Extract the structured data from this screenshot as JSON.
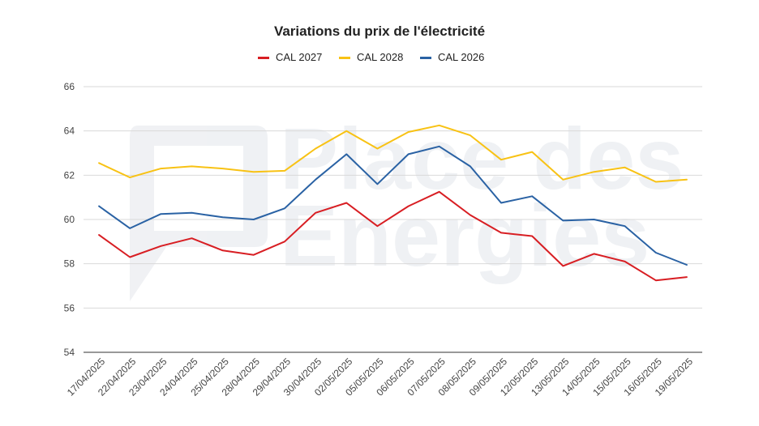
{
  "chart_data": {
    "type": "line",
    "title": "Variations du prix de l'électricité",
    "xlabel": "",
    "ylabel": "",
    "categories": [
      "17/04/2025",
      "22/04/2025",
      "23/04/2025",
      "24/04/2025",
      "25/04/2025",
      "28/04/2025",
      "29/04/2025",
      "30/04/2025",
      "02/05/2025",
      "05/05/2025",
      "06/05/2025",
      "07/05/2025",
      "08/05/2025",
      "09/05/2025",
      "12/05/2025",
      "13/05/2025",
      "14/05/2025",
      "15/05/2025",
      "16/05/2025",
      "19/05/2025"
    ],
    "ylim": [
      54,
      66
    ],
    "yticks": [
      "54",
      "56",
      "58",
      "60",
      "62",
      "64",
      "66"
    ],
    "grid": true,
    "legend_position": "top",
    "series": [
      {
        "name": "CAL 2027",
        "color": "#d81e23",
        "values": [
          59.3,
          58.3,
          58.8,
          59.15,
          58.6,
          58.4,
          59.0,
          60.3,
          60.75,
          59.7,
          60.6,
          61.25,
          60.2,
          59.4,
          59.25,
          57.9,
          58.45,
          58.1,
          57.25,
          57.4
        ]
      },
      {
        "name": "CAL 2028",
        "color": "#f8c214",
        "values": [
          62.55,
          61.9,
          62.3,
          62.4,
          62.3,
          62.15,
          62.2,
          63.2,
          64.0,
          63.2,
          63.95,
          64.25,
          63.8,
          62.7,
          63.05,
          61.8,
          62.15,
          62.35,
          61.7,
          61.8
        ]
      },
      {
        "name": "CAL 2026",
        "color": "#2a62a4",
        "values": [
          60.6,
          59.6,
          60.25,
          60.3,
          60.1,
          60.0,
          60.5,
          61.8,
          62.95,
          61.6,
          62.95,
          63.3,
          62.4,
          60.75,
          61.05,
          59.95,
          60.0,
          59.7,
          58.5,
          57.95
        ]
      }
    ]
  },
  "watermark": {
    "line1": "Place des",
    "line2": "Energies"
  }
}
